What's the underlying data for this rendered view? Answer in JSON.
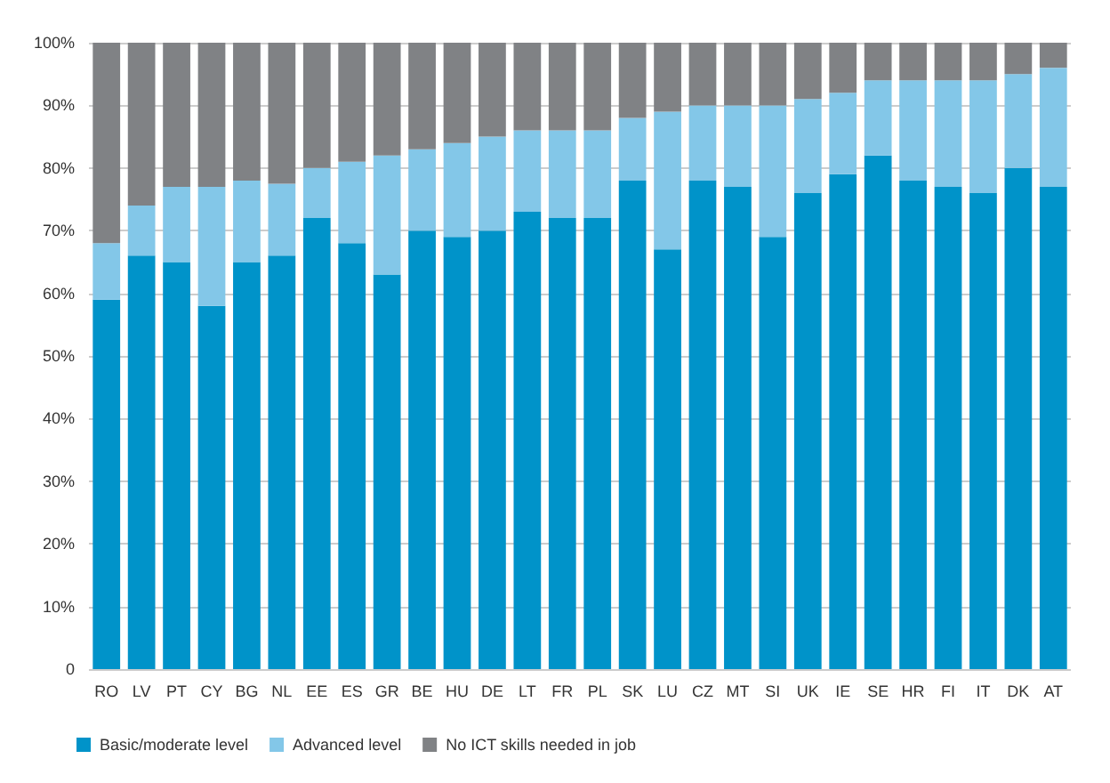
{
  "chart_data": {
    "type": "bar",
    "stacked": true,
    "categories": [
      "RO",
      "LV",
      "PT",
      "CY",
      "BG",
      "NL",
      "EE",
      "ES",
      "GR",
      "BE",
      "HU",
      "DE",
      "LT",
      "FR",
      "PL",
      "SK",
      "LU",
      "CZ",
      "MT",
      "SI",
      "UK",
      "IE",
      "SE",
      "HR",
      "FI",
      "IT",
      "DK",
      "AT"
    ],
    "series": [
      {
        "name": "Basic/moderate level",
        "color": "#0093c9",
        "values": [
          59,
          66,
          65,
          58,
          65,
          66,
          72,
          68,
          63,
          70,
          69,
          70,
          73,
          72,
          72,
          78,
          67,
          78,
          77,
          69,
          76,
          79,
          82,
          78,
          77,
          76,
          80,
          77
        ]
      },
      {
        "name": "Advanced level",
        "color": "#83c7e8",
        "values": [
          9,
          8,
          12,
          19,
          13,
          11.5,
          8,
          13,
          19,
          13,
          15,
          15,
          13,
          14,
          14,
          10,
          22,
          12,
          13,
          21,
          15,
          13,
          12,
          16,
          17,
          18,
          15,
          19
        ]
      },
      {
        "name": "No ICT skills needed in job",
        "color": "#808285",
        "values": [
          32,
          26,
          23,
          23,
          22,
          22.5,
          20,
          19,
          18,
          17,
          16,
          15,
          14,
          14,
          14,
          12,
          11,
          10,
          10,
          10,
          9,
          8,
          6,
          6,
          6,
          6,
          5,
          4
        ]
      }
    ],
    "ylim": [
      0,
      100
    ],
    "yticks": [
      {
        "value": 0,
        "label": "0"
      },
      {
        "value": 10,
        "label": "10%"
      },
      {
        "value": 20,
        "label": "20%"
      },
      {
        "value": 30,
        "label": "30%"
      },
      {
        "value": 40,
        "label": "40%"
      },
      {
        "value": 50,
        "label": "50%"
      },
      {
        "value": 60,
        "label": "60%"
      },
      {
        "value": 70,
        "label": "70%"
      },
      {
        "value": 80,
        "label": "80%"
      },
      {
        "value": 90,
        "label": "90%"
      },
      {
        "value": 100,
        "label": "100%"
      }
    ],
    "grid": "y",
    "legend": "bottom left"
  }
}
